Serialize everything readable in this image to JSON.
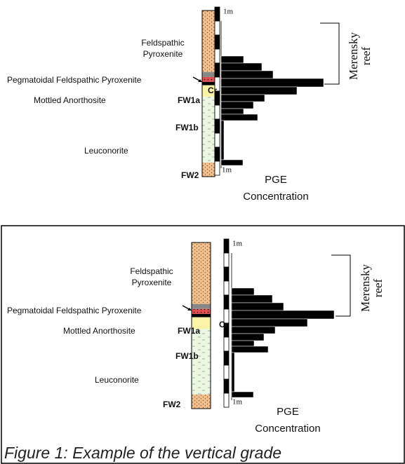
{
  "panels": [
    {
      "upper_unit": [
        "Feldspathic",
        "Pyroxenite"
      ],
      "pegmatoid": "Pegmatoidal Feldspathic Pyroxenite",
      "anorthosite": "Mottled Anorthosite",
      "leuconorite": "Leuconorite",
      "fw1a": "FW1a",
      "fw1b": "FW1b",
      "fw2": "FW2",
      "chromitite": "Cr",
      "scale_top": "1m",
      "scale_bottom": "1m",
      "reef_label": [
        "Merensky",
        "reef"
      ],
      "axis_label": [
        "PGE",
        "Concentration"
      ]
    },
    {
      "upper_unit": [
        "Feldspathic",
        "Pyroxenite"
      ],
      "pegmatoid": "Pegmatoidal Feldspathic Pyroxenite",
      "anorthosite": "Mottled Anorthosite",
      "leuconorite": "Leuconorite",
      "fw1a": "FW1a",
      "fw1b": "FW1b",
      "fw2": "FW2",
      "chromitite": "Cr",
      "scale_top": "1m",
      "scale_bottom": "1m",
      "reef_label": [
        "Merensky",
        "reef"
      ],
      "axis_label": [
        "PGE",
        "Concentration"
      ]
    }
  ],
  "caption": "Figure 1: Example of the vertical grade"
}
